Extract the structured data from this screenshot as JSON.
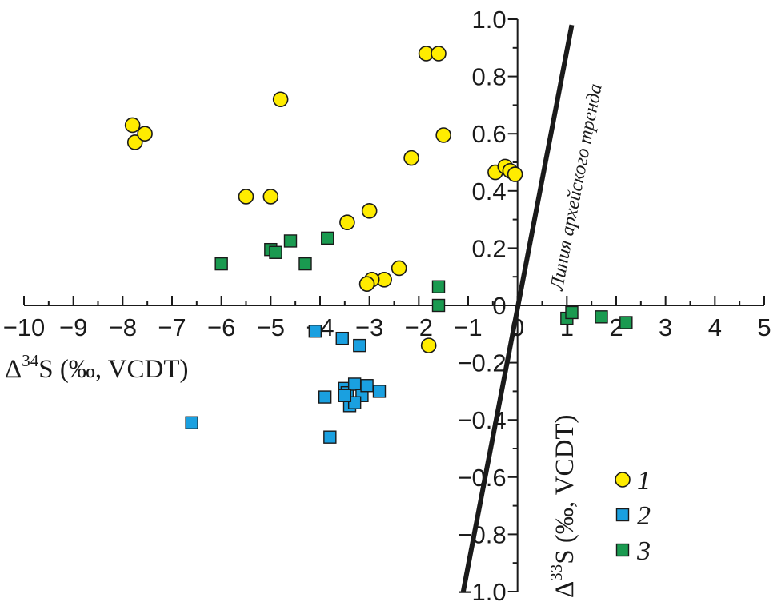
{
  "chart_data": {
    "type": "scatter",
    "title": "",
    "xlabel": "Δ³⁴S (‰, VCDT)",
    "xlabel_parts": {
      "delta": "Δ",
      "sup": "34",
      "rest": "S (‰, VCDT)"
    },
    "ylabel": "Δ³³S (‰, VCDT)",
    "ylabel_parts": {
      "delta": "Δ",
      "sup": "33",
      "rest": "S (‰, VCDT)"
    },
    "xlim": [
      -10,
      5
    ],
    "ylim": [
      -1.0,
      1.0
    ],
    "x_ticks": [
      -10,
      -9,
      -8,
      -7,
      -6,
      -5,
      -4,
      -3,
      -2,
      -1,
      0,
      1,
      2,
      3,
      4,
      5
    ],
    "x_tick_labels": [
      "−10",
      "−9",
      "−8",
      "−7",
      "−6",
      "−5",
      "−4",
      "−3",
      "−2",
      "−1",
      "0",
      "1",
      "2",
      "3",
      "4",
      "5"
    ],
    "y_ticks": [
      1.0,
      0.8,
      0.6,
      0.4,
      0.2,
      0,
      -0.2,
      -0.4,
      -0.6,
      -0.8,
      -1.0
    ],
    "y_tick_labels": [
      "1.0",
      "0.8",
      "0.6",
      "0.4",
      "0.2",
      "0",
      "−0.2",
      "−0.4",
      "−0.6",
      "−0.8",
      "−1.0"
    ],
    "grid": false,
    "legend_position": "bottom-right",
    "trend_line": {
      "label": "Линия архейского тренда",
      "points": [
        [
          -1.1,
          -1.0
        ],
        [
          1.1,
          0.98
        ]
      ],
      "color": "#1a1a1a"
    },
    "series": [
      {
        "name": "1",
        "marker": "circle",
        "color": "#ffec00",
        "points": [
          [
            -7.8,
            0.63
          ],
          [
            -7.75,
            0.57
          ],
          [
            -7.55,
            0.6
          ],
          [
            -4.8,
            0.72
          ],
          [
            -5.5,
            0.38
          ],
          [
            -5.0,
            0.38
          ],
          [
            -3.45,
            0.29
          ],
          [
            -3.0,
            0.33
          ],
          [
            -1.85,
            0.88
          ],
          [
            -1.6,
            0.88
          ],
          [
            -2.15,
            0.515
          ],
          [
            -1.5,
            0.595
          ],
          [
            -0.45,
            0.465
          ],
          [
            -0.25,
            0.485
          ],
          [
            -0.15,
            0.47
          ],
          [
            -0.05,
            0.458
          ],
          [
            -2.4,
            0.13
          ],
          [
            -2.7,
            0.09
          ],
          [
            -2.95,
            0.09
          ],
          [
            -3.05,
            0.075
          ],
          [
            -1.8,
            -0.14
          ]
        ]
      },
      {
        "name": "2",
        "marker": "square",
        "color": "#1aa0e0",
        "points": [
          [
            -6.6,
            -0.41
          ],
          [
            -4.1,
            -0.09
          ],
          [
            -3.55,
            -0.115
          ],
          [
            -3.2,
            -0.14
          ],
          [
            -3.9,
            -0.32
          ],
          [
            -3.5,
            -0.29
          ],
          [
            -3.45,
            -0.305
          ],
          [
            -3.3,
            -0.275
          ],
          [
            -3.15,
            -0.315
          ],
          [
            -3.05,
            -0.28
          ],
          [
            -2.8,
            -0.3
          ],
          [
            -3.4,
            -0.35
          ],
          [
            -3.3,
            -0.34
          ],
          [
            -3.5,
            -0.315
          ],
          [
            -3.8,
            -0.46
          ]
        ]
      },
      {
        "name": "3",
        "marker": "square",
        "color": "#1a9a50",
        "points": [
          [
            -6.0,
            0.145
          ],
          [
            -5.0,
            0.195
          ],
          [
            -4.9,
            0.185
          ],
          [
            -4.6,
            0.225
          ],
          [
            -4.3,
            0.145
          ],
          [
            -3.85,
            0.235
          ],
          [
            -1.6,
            0.065
          ],
          [
            -1.6,
            0.0
          ],
          [
            1.0,
            -0.045
          ],
          [
            1.1,
            -0.025
          ],
          [
            1.7,
            -0.04
          ],
          [
            2.2,
            -0.06
          ]
        ]
      }
    ]
  }
}
